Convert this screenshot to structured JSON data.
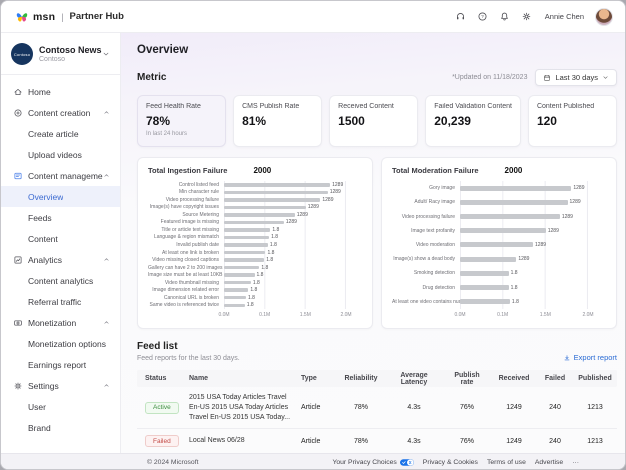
{
  "topbar": {
    "brand": {
      "name": "msn",
      "divider": "|",
      "product": "Partner Hub"
    },
    "icons": [
      "headset-icon",
      "help-icon",
      "bell-icon",
      "gear-icon"
    ],
    "user": {
      "name": "Annie Chen"
    }
  },
  "sidebar": {
    "account": {
      "name": "Contoso News",
      "org": "Contoso",
      "avatar_text": "Contoso"
    },
    "items": [
      {
        "id": "home",
        "label": "Home",
        "icon": "home-icon",
        "type": "section",
        "chevron": false
      },
      {
        "id": "content-creation",
        "label": "Content creation",
        "icon": "create-icon",
        "type": "section",
        "chevron": true
      },
      {
        "id": "create-article",
        "label": "Create article",
        "type": "child"
      },
      {
        "id": "upload-videos",
        "label": "Upload videos",
        "type": "child"
      },
      {
        "id": "content-management",
        "label": "Content management",
        "icon": "content-management-icon",
        "type": "section",
        "chevron": true,
        "icon_accent": true
      },
      {
        "id": "overview",
        "label": "Overview",
        "type": "child",
        "active": true
      },
      {
        "id": "feeds",
        "label": "Feeds",
        "type": "child"
      },
      {
        "id": "content",
        "label": "Content",
        "type": "child"
      },
      {
        "id": "analytics",
        "label": "Analytics",
        "icon": "analytics-icon",
        "type": "section",
        "chevron": true
      },
      {
        "id": "content-analytics",
        "label": "Content analytics",
        "type": "child"
      },
      {
        "id": "referral-traffic",
        "label": "Referral traffic",
        "type": "child"
      },
      {
        "id": "monetization",
        "label": "Monetization",
        "icon": "monetization-icon",
        "type": "section",
        "chevron": true
      },
      {
        "id": "monetization-options",
        "label": "Monetization options",
        "type": "child"
      },
      {
        "id": "earnings-report",
        "label": "Earnings report",
        "type": "child"
      },
      {
        "id": "settings",
        "label": "Settings",
        "icon": "settings-icon",
        "type": "section",
        "chevron": true
      },
      {
        "id": "user",
        "label": "User",
        "type": "child"
      },
      {
        "id": "brand",
        "label": "Brand",
        "type": "child"
      }
    ]
  },
  "page": {
    "title": "Overview"
  },
  "metric": {
    "title": "Metric",
    "updated": "*Updated on 11/18/2023",
    "range_button": "Last 30 days"
  },
  "metric_cards": [
    {
      "label": "Feed Health Rate",
      "value": "78%",
      "note": "In last 24 hours",
      "selected": true
    },
    {
      "label": "CMS Publish Rate",
      "value": "81%"
    },
    {
      "label": "Received Content",
      "value": "1500"
    },
    {
      "label": "Failed Validation Content",
      "value": "20,239"
    },
    {
      "label": "Content Published",
      "value": "120"
    }
  ],
  "chart_data": [
    {
      "type": "bar",
      "orientation": "horizontal",
      "title": "Total Ingestion Failure",
      "total": "2000",
      "categories": [
        "Control listed feed",
        "Min character rule",
        "Video processing failure",
        "Image(s) have copyright issues",
        "Source Metering",
        "Featured image is missing",
        "Title or article text missing",
        "Language & region mismatch",
        "Invalid publish date",
        "At least one link is broken",
        "Video missing closed captions",
        "Gallery can have 2 to 200 images",
        "Image size must be at least 10KB",
        "Video thumbnail missing",
        "Image dimension related error",
        "Canonical URL is broken",
        "Same video is referenced twice"
      ],
      "values": [
        "1289",
        "1289",
        "1289",
        "1289",
        "1289",
        "1289",
        "1.8",
        "1.8",
        "1.8",
        "1.8",
        "1.8",
        "1.8",
        "1.8",
        "1.8",
        "1.8",
        "1.8",
        "1.8"
      ],
      "bar_pct": [
        87,
        85,
        79,
        67,
        58,
        49,
        38,
        37,
        36,
        34,
        33,
        29,
        25,
        22,
        20,
        18,
        17
      ],
      "x_ticks": [
        "0.0M",
        "0.1M",
        "1.5M",
        "2.0M"
      ],
      "grid": true,
      "legend": false
    },
    {
      "type": "bar",
      "orientation": "horizontal",
      "title": "Total Moderation Failure",
      "total": "2000",
      "categories": [
        "Gory image",
        "Adult/ Racy image",
        "Video processing failure",
        "Image text profanity",
        "Video moderation",
        "Image(s) show a dead body",
        "Smoking detection",
        "Drug detection",
        "At least one video contains nudi..."
      ],
      "values": [
        "1289",
        "1289",
        "1289",
        "1289",
        "1289",
        "1289",
        "1.8",
        "1.8",
        "1.8"
      ],
      "bar_pct": [
        87,
        84,
        78,
        67,
        57,
        44,
        38,
        38,
        39
      ],
      "x_ticks": [
        "0.0M",
        "0.1M",
        "1.5M",
        "2.0M"
      ],
      "grid": true,
      "legend": false
    }
  ],
  "feed_list": {
    "title": "Feed list",
    "subtitle": "Feed reports for the last 30 days.",
    "export_label": "Export report",
    "columns": [
      "Status",
      "Name",
      "Type",
      "Reliability",
      "Average Latency",
      "Publish rate",
      "Received",
      "Failed",
      "Published"
    ],
    "rows": [
      {
        "status": "Active",
        "status_type": "active",
        "name": "2015 USA Today Articles Travel En-US 2015 USA Today Articles Travel En-US 2015 USA Today...",
        "type": "Article",
        "reliability": "78%",
        "latency": "4.3s",
        "publish_rate": "76%",
        "received": "1249",
        "failed": "240",
        "published": "1213"
      },
      {
        "status": "Failed",
        "status_type": "failed",
        "name": "Local News 06/28",
        "type": "Article",
        "reliability": "78%",
        "latency": "4.3s",
        "publish_rate": "76%",
        "received": "1249",
        "failed": "240",
        "published": "1213"
      }
    ]
  },
  "footer": {
    "copyright": "© 2024 Microsoft",
    "links": [
      {
        "label": "Your Privacy Choices",
        "icon": "privacy-choices-icon"
      },
      {
        "label": "Privacy & Cookies"
      },
      {
        "label": "Terms of use"
      },
      {
        "label": "Advertise"
      },
      {
        "label": "···"
      }
    ]
  },
  "colors": {
    "accent_blue": "#4a7fe8",
    "link_blue": "#2a6bd4",
    "bar_gray": "#c7c9cd",
    "active_green": "#3e8e41",
    "failed_red": "#c24a46",
    "selected_nav_bg": "#eef1fb",
    "main_bg_tint": "#f1ecf9"
  }
}
